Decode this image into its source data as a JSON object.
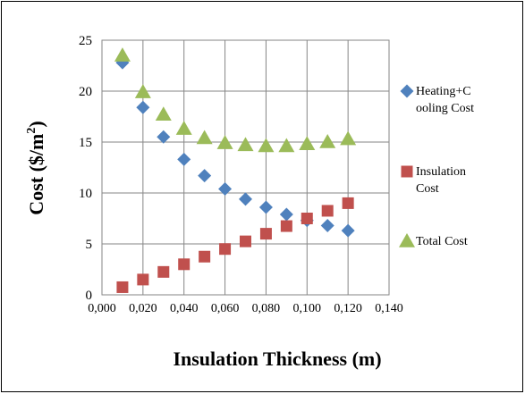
{
  "chart_data": {
    "type": "scatter",
    "xlabel": "Insulation Thickness (m)",
    "ylabel_main": "Cost ($/m",
    "ylabel_sup": "2",
    "ylabel_end": ")",
    "xlim": [
      0,
      0.14
    ],
    "ylim": [
      0,
      25
    ],
    "x_ticks": [
      "0,000",
      "0,020",
      "0,040",
      "0,060",
      "0,080",
      "0,100",
      "0,120",
      "0,140"
    ],
    "y_ticks": [
      "0",
      "5",
      "10",
      "15",
      "20",
      "25"
    ],
    "grid": true,
    "legend_position": "right",
    "series": [
      {
        "name_lines": [
          "Heating+C",
          "ooling Cost"
        ],
        "marker": "diamond",
        "color": "#4f81bd",
        "x": [
          0.01,
          0.02,
          0.03,
          0.04,
          0.05,
          0.06,
          0.07,
          0.08,
          0.09,
          0.1,
          0.11,
          0.12
        ],
        "y": [
          22.8,
          18.4,
          15.5,
          13.3,
          11.7,
          10.4,
          9.4,
          8.6,
          7.9,
          7.3,
          6.8,
          6.3
        ]
      },
      {
        "name_lines": [
          "Insulation",
          "Cost"
        ],
        "marker": "square",
        "color": "#c0504d",
        "x": [
          0.01,
          0.02,
          0.03,
          0.04,
          0.05,
          0.06,
          0.07,
          0.08,
          0.09,
          0.1,
          0.11,
          0.12
        ],
        "y": [
          0.75,
          1.5,
          2.25,
          3.0,
          3.75,
          4.5,
          5.25,
          6.0,
          6.75,
          7.5,
          8.25,
          9.0
        ]
      },
      {
        "name_lines": [
          "Total Cost"
        ],
        "marker": "triangle",
        "color": "#9bbb59",
        "x": [
          0.01,
          0.02,
          0.03,
          0.04,
          0.05,
          0.06,
          0.07,
          0.08,
          0.09,
          0.1,
          0.11,
          0.12
        ],
        "y": [
          23.5,
          19.9,
          17.7,
          16.3,
          15.4,
          14.9,
          14.7,
          14.6,
          14.6,
          14.8,
          15.0,
          15.3
        ]
      }
    ]
  }
}
